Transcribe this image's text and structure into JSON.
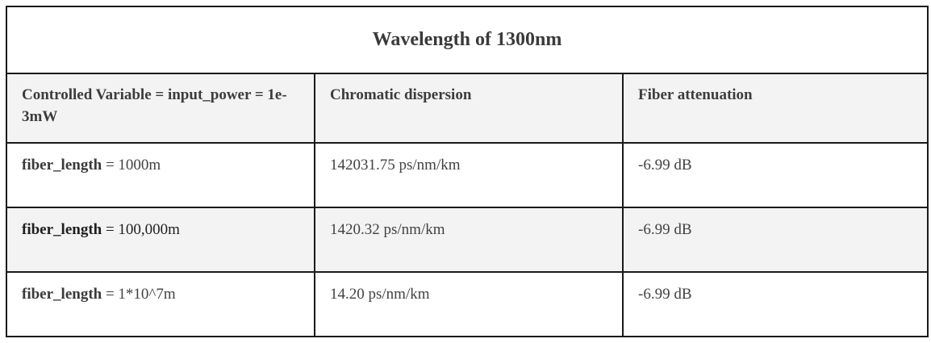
{
  "table": {
    "title": "Wavelength of 1300nm",
    "headers": [
      "Controlled Variable = input_power = 1e-3mW",
      "Chromatic dispersion",
      "Fiber attenuation"
    ],
    "rows": [
      {
        "param_name": "fiber_length",
        "param_value": " = 1000m",
        "dispersion": "142031.75 ps/nm/km",
        "attenuation": "-6.99 dB"
      },
      {
        "param_name": "fiber_length",
        "param_value": " = 100,000m",
        "dispersion": "1420.32 ps/nm/km",
        "attenuation": "-6.99 dB"
      },
      {
        "param_name": "fiber_length",
        "param_value": " = 1*10^7m",
        "dispersion": "14.20 ps/nm/km",
        "attenuation": "-6.99 dB"
      }
    ]
  },
  "colors": {
    "border": "#1a1a1a",
    "shaded_row_background": "#f3f3f3",
    "text": "#404040"
  }
}
